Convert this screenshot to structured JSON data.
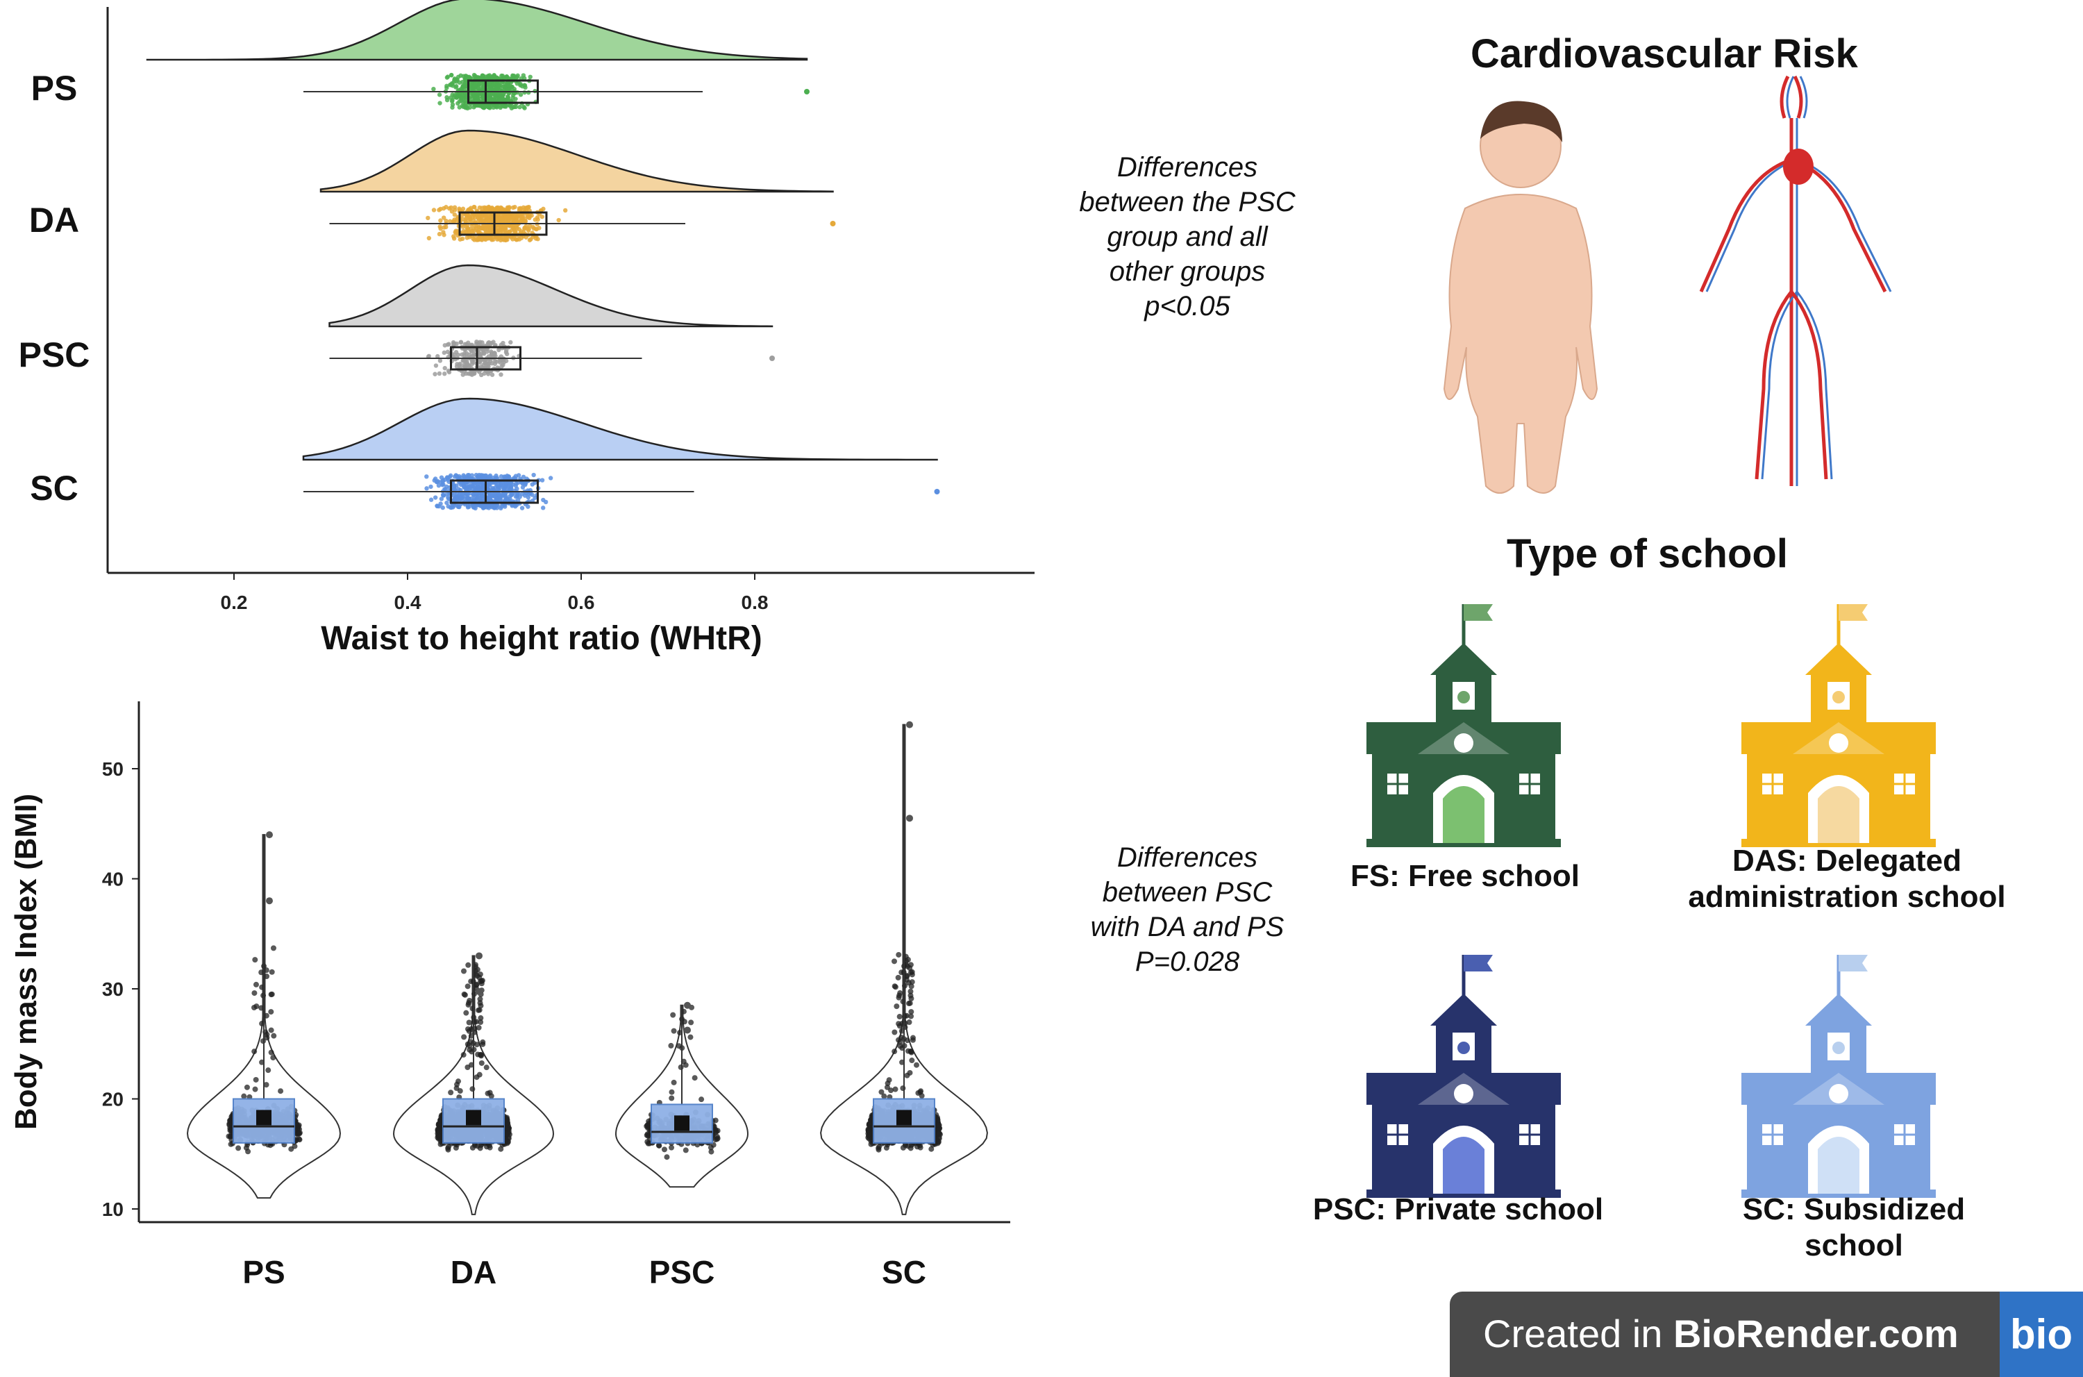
{
  "chart_data": [
    {
      "type": "raincloud",
      "orientation": "horizontal",
      "xlabel": "Waist to height ratio (WHtR)",
      "ylabel": "",
      "xlim": [
        0.05,
        1.05
      ],
      "xticks": [
        "0.2",
        "0.4",
        "0.6",
        "0.8"
      ],
      "categories": [
        "PS",
        "DA",
        "PSC",
        "SC"
      ],
      "series": [
        {
          "name": "PS",
          "color": "#4caf50",
          "fill": "#9fd59a",
          "min": 0.1,
          "q1": 0.47,
          "median": 0.49,
          "q3": 0.55,
          "max": 0.86,
          "whisker_low": 0.28,
          "whisker_high": 0.74,
          "mode": 0.47
        },
        {
          "name": "DA",
          "color": "#e5a93a",
          "fill": "#f4d4a0",
          "min": 0.3,
          "q1": 0.46,
          "median": 0.5,
          "q3": 0.56,
          "max": 0.89,
          "whisker_low": 0.31,
          "whisker_high": 0.72,
          "mode": 0.47
        },
        {
          "name": "PSC",
          "color": "#9e9e9e",
          "fill": "#d6d6d6",
          "min": 0.31,
          "q1": 0.45,
          "median": 0.48,
          "q3": 0.53,
          "max": 0.82,
          "whisker_low": 0.31,
          "whisker_high": 0.67,
          "mode": 0.47
        },
        {
          "name": "SC",
          "color": "#5b8fe0",
          "fill": "#b9cff3",
          "min": 0.28,
          "q1": 0.45,
          "median": 0.49,
          "q3": 0.55,
          "max": 1.01,
          "whisker_low": 0.28,
          "whisker_high": 0.73,
          "mode": 0.47
        }
      ]
    },
    {
      "type": "violin-box",
      "xlabel": "",
      "ylabel": "Body mass Index (BMI)",
      "ylim": [
        9,
        56
      ],
      "yticks": [
        "10",
        "20",
        "30",
        "40",
        "50"
      ],
      "categories": [
        "PS",
        "DA",
        "PSC",
        "SC"
      ],
      "series": [
        {
          "name": "PS",
          "min": 11,
          "q1": 16,
          "median": 17.5,
          "q3": 20,
          "max": 44,
          "mean": 18.3
        },
        {
          "name": "DA",
          "min": 9.5,
          "q1": 16,
          "median": 17.5,
          "q3": 20,
          "max": 33,
          "mean": 18.3
        },
        {
          "name": "PSC",
          "min": 12,
          "q1": 16,
          "median": 17,
          "q3": 19.5,
          "max": 28.5,
          "mean": 17.8
        },
        {
          "name": "SC",
          "min": 9.5,
          "q1": 16,
          "median": 17.5,
          "q3": 20,
          "max": 54,
          "mean": 18.3
        }
      ]
    }
  ],
  "notes": {
    "whtr": [
      "Differences",
      "between the PSC",
      "group and all",
      "other groups",
      "p<0.05"
    ],
    "bmi": [
      "Differences",
      "between PSC",
      "with DA and PS",
      "P=0.028"
    ]
  },
  "titles": {
    "cardio": "Cardiovascular Risk",
    "school_type": "Type of school"
  },
  "schools": [
    {
      "caption_lines": [
        "FS: Free school"
      ],
      "color": "#2e5e3f",
      "flag": "#6ea56b",
      "door": "#7cc070",
      "icon": "school-building-icon"
    },
    {
      "caption_lines": [
        "DAS: Delegated",
        "administration school"
      ],
      "color": "#f2b51b",
      "flag": "#f5cc72",
      "door": "#f6d9a0",
      "icon": "school-building-icon"
    },
    {
      "caption_lines": [
        "PSC: Private school"
      ],
      "color": "#27336b",
      "flag": "#4a5fb0",
      "door": "#6a80d8",
      "icon": "school-building-icon"
    },
    {
      "caption_lines": [
        "SC: Subsidized",
        "school"
      ],
      "color": "#7ea3e0",
      "flag": "#b8cfee",
      "door": "#cfe0f6",
      "icon": "school-building-icon"
    }
  ],
  "illustrations": [
    "child-body-icon",
    "circulatory-system-icon"
  ],
  "badge": {
    "prefix": "Created in ",
    "brand": "BioRender.com",
    "logo": "bio"
  }
}
